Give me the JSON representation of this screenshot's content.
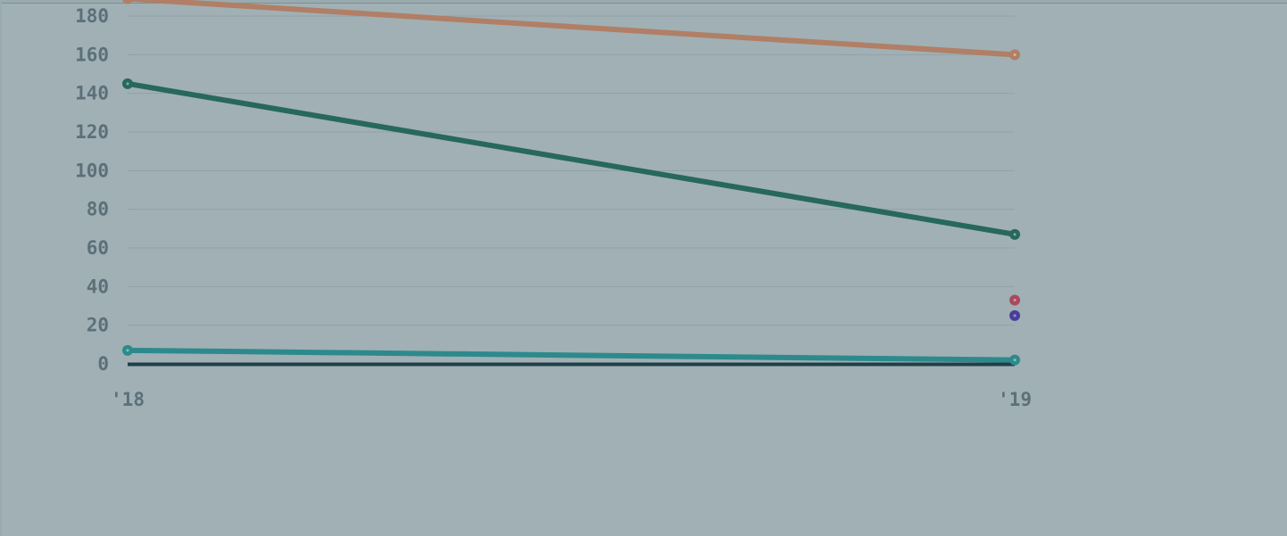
{
  "chart_data": {
    "type": "line",
    "categories": [
      "'18",
      "'19"
    ],
    "ylim": [
      0,
      180
    ],
    "yticks": [
      0,
      20,
      40,
      60,
      80,
      100,
      120,
      140,
      160,
      180
    ],
    "grid": true,
    "series": [
      {
        "color": "#b07f66",
        "values": [
          189,
          160
        ]
      },
      {
        "color": "#27685c",
        "values": [
          145,
          67
        ]
      },
      {
        "color": "#2d8a8c",
        "values": [
          7,
          2
        ]
      },
      {
        "color": "#a84a5e",
        "values": [
          null,
          33
        ]
      },
      {
        "color": "#4a3f9a",
        "values": [
          null,
          25
        ]
      }
    ]
  }
}
